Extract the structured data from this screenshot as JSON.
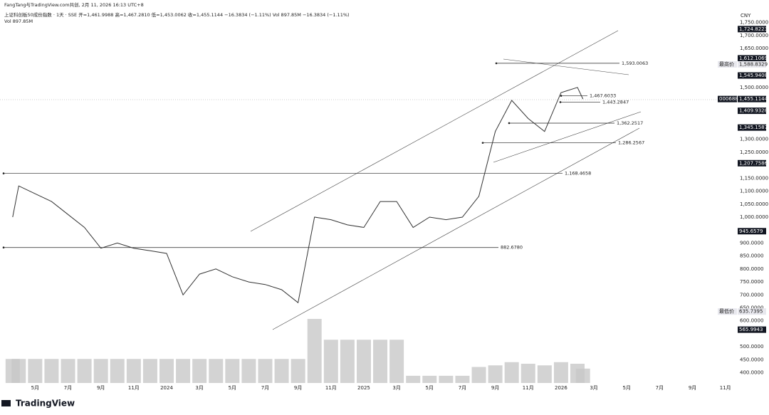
{
  "header": {
    "source": "FangTang与TradingView.com共创, 2月 11, 2026 16:13 UTC+8",
    "symbol_line": "上证科创板50成份指数 · 1天 · SSE  开=1,461.9988  高=1,467.2810  低=1,453.0062  收=1,455.1144  −16.3834 (−1.11%)  Vol 897.85M  −16.3834 (−1.11%)",
    "vol_line": "Vol  897.85M",
    "currency": "CNY"
  },
  "footer": {
    "brand": "TradingView"
  },
  "chart_data": {
    "type": "line",
    "color": "#333333",
    "volume_color": "#c8c8c8",
    "x": [
      "2023-03-20",
      "2023-04",
      "2023-05",
      "2023-06",
      "2023-07",
      "2023-08",
      "2023-09",
      "2023-10",
      "2023-11",
      "2023-12",
      "2024-01",
      "2024-02",
      "2024-03",
      "2024-04",
      "2024-05",
      "2024-06",
      "2024-07",
      "2024-08",
      "2024-09",
      "2024-10",
      "2024-11",
      "2024-12",
      "2025-01",
      "2025-02",
      "2025-03",
      "2025-04",
      "2025-05",
      "2025-06",
      "2025-07",
      "2025-08",
      "2025-09",
      "2025-10",
      "2025-11",
      "2025-12",
      "2026-01",
      "2026-02",
      "2026-02-11"
    ],
    "values": [
      1000,
      1120,
      1090,
      1060,
      1010,
      960,
      880,
      900,
      880,
      870,
      860,
      700,
      780,
      800,
      770,
      750,
      740,
      720,
      670,
      1000,
      990,
      970,
      960,
      1060,
      1060,
      960,
      1000,
      990,
      1000,
      1080,
      1330,
      1450,
      1380,
      1330,
      1480,
      1500,
      1455.1144
    ],
    "volume": [
      1500,
      1500,
      1500,
      1500,
      1500,
      1500,
      1500,
      1500,
      1500,
      1500,
      1500,
      1500,
      1500,
      1500,
      1500,
      1500,
      1500,
      1500,
      1500,
      4000,
      2700,
      2700,
      2700,
      2700,
      2700,
      450,
      450,
      450,
      450,
      1000,
      1100,
      1300,
      1200,
      1100,
      1300,
      1200,
      897.85
    ],
    "ylim": [
      355,
      1815
    ],
    "yticks": [
      {
        "value": 1750,
        "label": "1,750.0000"
      },
      {
        "value": 1700,
        "label": "1,700.0000"
      },
      {
        "value": 1650,
        "label": "1,650.0000"
      },
      {
        "value": 1500,
        "label": "1,500.0000"
      },
      {
        "value": 1300,
        "label": "1,300.0000"
      },
      {
        "value": 1250,
        "label": "1,250.0000"
      },
      {
        "value": 1150,
        "label": "1,150.0000"
      },
      {
        "value": 1100,
        "label": "1,100.0000"
      },
      {
        "value": 1050,
        "label": "1,050.0000"
      },
      {
        "value": 1000,
        "label": "1,000.0000"
      },
      {
        "value": 900,
        "label": "900.0000"
      },
      {
        "value": 850,
        "label": "850.0000"
      },
      {
        "value": 800,
        "label": "800.0000"
      },
      {
        "value": 750,
        "label": "750.0000"
      },
      {
        "value": 700,
        "label": "700.0000"
      },
      {
        "value": 650,
        "label": "650.0000"
      },
      {
        "value": 600,
        "label": "600.0000"
      },
      {
        "value": 500,
        "label": "500.0000"
      },
      {
        "value": 450,
        "label": "450.0000"
      },
      {
        "value": 400,
        "label": "400.0000"
      }
    ],
    "xticks": [
      {
        "value": "2023-05",
        "label": "5月"
      },
      {
        "value": "2023-07",
        "label": "7月"
      },
      {
        "value": "2023-09",
        "label": "9月"
      },
      {
        "value": "2023-11",
        "label": "11月"
      },
      {
        "value": "2024-01",
        "label": "2024"
      },
      {
        "value": "2024-03",
        "label": "3月"
      },
      {
        "value": "2024-05",
        "label": "5月"
      },
      {
        "value": "2024-07",
        "label": "7月"
      },
      {
        "value": "2024-09",
        "label": "9月"
      },
      {
        "value": "2024-11",
        "label": "11月"
      },
      {
        "value": "2025-01",
        "label": "2025"
      },
      {
        "value": "2025-03",
        "label": "3月"
      },
      {
        "value": "2025-05",
        "label": "5月"
      },
      {
        "value": "2025-07",
        "label": "7月"
      },
      {
        "value": "2025-09",
        "label": "9月"
      },
      {
        "value": "2025-11",
        "label": "11月"
      },
      {
        "value": "2026-01",
        "label": "2026"
      },
      {
        "value": "2026-03",
        "label": "3月"
      },
      {
        "value": "2026-05",
        "label": "5月"
      },
      {
        "value": "2026-07",
        "label": "7月"
      },
      {
        "value": "2026-09",
        "label": "9月"
      },
      {
        "value": "2026-11",
        "label": "11月"
      }
    ],
    "price_labels": [
      {
        "value": 1724.8223,
        "label": "1,724.8223",
        "style": "dark"
      },
      {
        "value": 1612.1069,
        "label": "1,612.1069",
        "style": "dark"
      },
      {
        "value": 1588.8329,
        "label": "1,588.8329",
        "style": "light",
        "tag": "最高价"
      },
      {
        "value": 1545.9408,
        "label": "1,545.9408",
        "style": "dark"
      },
      {
        "value": 1455.1144,
        "label": "1,455.1144",
        "style": "dark",
        "tag": "000688"
      },
      {
        "value": 1409.9328,
        "label": "1,409.9328",
        "style": "dark"
      },
      {
        "value": 1345.1587,
        "label": "1,345.1587",
        "style": "dark"
      },
      {
        "value": 1207.7586,
        "label": "1,207.7586",
        "style": "dark"
      },
      {
        "value": 945.6579,
        "label": "945.6579",
        "style": "dark"
      },
      {
        "value": 635.7395,
        "label": "635.7395",
        "style": "light",
        "tag": "最低价"
      },
      {
        "value": 565.9943,
        "label": "565.9943",
        "style": "dark"
      }
    ],
    "levels": [
      {
        "value": 1593.0063,
        "label": "1,593.0063"
      },
      {
        "value": 1467.6033,
        "label": "1,467.6033"
      },
      {
        "value": 1443.2847,
        "label": "1,443.2847"
      },
      {
        "value": 1362.2517,
        "label": "1,362.2517"
      },
      {
        "value": 1286.2567,
        "label": "1,286.2567"
      },
      {
        "value": 1168.4658,
        "label": "1,168.4658"
      },
      {
        "value": 882.678,
        "label": "882.6780"
      }
    ]
  }
}
